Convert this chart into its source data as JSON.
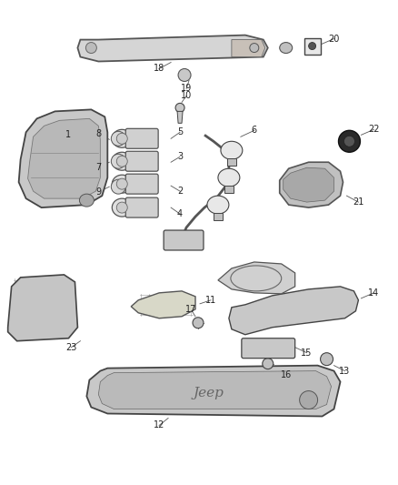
{
  "bg_color": "#ffffff",
  "fig_width": 4.38,
  "fig_height": 5.33,
  "dpi": 100,
  "label_color": "#222222",
  "label_fontsize": 7.0,
  "line_color": "#666666"
}
